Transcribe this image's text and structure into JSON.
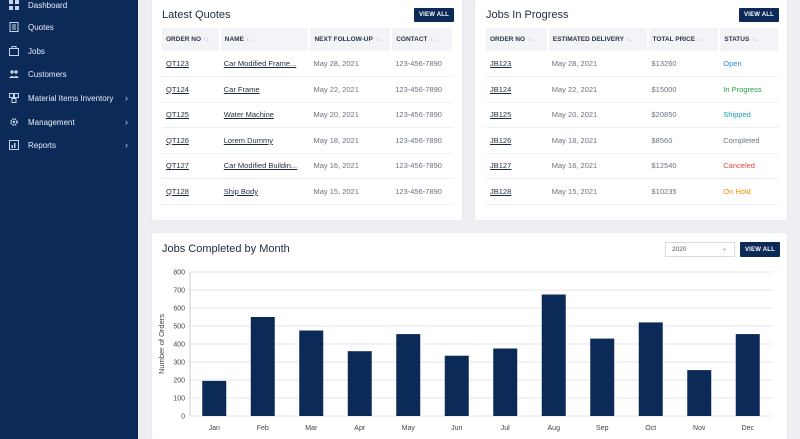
{
  "sidebar": {
    "items": [
      {
        "label": "Dashboard",
        "icon": "dashboard-icon",
        "has_submenu": false
      },
      {
        "label": "Quotes",
        "icon": "quotes-icon",
        "has_submenu": false
      },
      {
        "label": "Jobs",
        "icon": "jobs-icon",
        "has_submenu": false
      },
      {
        "label": "Customers",
        "icon": "customers-icon",
        "has_submenu": false
      },
      {
        "label": "Material Items Inventory",
        "icon": "inventory-icon",
        "has_submenu": true
      },
      {
        "label": "Management",
        "icon": "gear-icon",
        "has_submenu": true
      },
      {
        "label": "Reports",
        "icon": "reports-icon",
        "has_submenu": true
      }
    ],
    "chevron": "›"
  },
  "latest_quotes": {
    "title": "Latest Quotes",
    "view_all": "VIEW ALL",
    "columns": [
      "ORDER NO",
      "NAME",
      "NEXT FOLLOW-UP",
      "CONTACT"
    ],
    "sort_glyph": "↑↓",
    "rows": [
      {
        "order": "QT123",
        "name": "Car Modified Frame...",
        "followup": "May 28, 2021",
        "contact": "123-456-7890"
      },
      {
        "order": "QT124",
        "name": "Car Frame",
        "followup": "May 22, 2021",
        "contact": "123-456-7890"
      },
      {
        "order": "QT125",
        "name": "Water Machine",
        "followup": "May 20, 2021",
        "contact": "123-456-7890"
      },
      {
        "order": "QT126",
        "name": "Lorem Dummy",
        "followup": "May 18, 2021",
        "contact": "123-456-7890"
      },
      {
        "order": "QT127",
        "name": "Car Modified Buildin...",
        "followup": "May 16, 2021",
        "contact": "123-456-7890"
      },
      {
        "order": "QT128",
        "name": "Ship Body",
        "followup": "May 15, 2021",
        "contact": "123-456-7890"
      }
    ]
  },
  "jobs_in_progress": {
    "title": "Jobs In Progress",
    "view_all": "VIEW ALL",
    "columns": [
      "ORDER NO",
      "ESTIMATED DELIVERY",
      "TOTAL PRICE",
      "STATUS"
    ],
    "sort_glyph": "↑↓",
    "rows": [
      {
        "order": "JB123",
        "delivery": "May 28, 2021",
        "price": "$13260",
        "status": "Open",
        "status_key": "open"
      },
      {
        "order": "JB124",
        "delivery": "May 22, 2021",
        "price": "$15000",
        "status": "In Progress",
        "status_key": "inprog"
      },
      {
        "order": "JB125",
        "delivery": "May 20, 2021",
        "price": "$20850",
        "status": "Shipped",
        "status_key": "shipped"
      },
      {
        "order": "JB126",
        "delivery": "May 18, 2021",
        "price": "$8560",
        "status": "Completed",
        "status_key": "completed"
      },
      {
        "order": "JB127",
        "delivery": "May 16, 2021",
        "price": "$12540",
        "status": "Canceled",
        "status_key": "canceled"
      },
      {
        "order": "JB128",
        "delivery": "May 15, 2021",
        "price": "$10235",
        "status": "On Hold",
        "status_key": "onhold"
      }
    ]
  },
  "jobs_completed": {
    "title": "Jobs Completed by Month",
    "view_all": "VIEW ALL",
    "year_selected": "2020",
    "caret": "⌄"
  },
  "colors": {
    "sidebar_bg": "#0b2a58",
    "bar": "#0b2a58",
    "accent": "#0b2a58"
  },
  "chart_data": {
    "type": "bar",
    "categories": [
      "Jan",
      "Feb",
      "Mar",
      "Apr",
      "May",
      "Jun",
      "Jul",
      "Aug",
      "Sep",
      "Oct",
      "Nov",
      "Dec"
    ],
    "values": [
      195,
      550,
      475,
      360,
      455,
      335,
      375,
      675,
      430,
      520,
      255,
      455
    ],
    "ylabel": "Number of Orders",
    "ylim": [
      0,
      800
    ],
    "yticks": [
      0,
      100,
      200,
      300,
      400,
      500,
      600,
      700,
      800
    ],
    "grid": true
  }
}
